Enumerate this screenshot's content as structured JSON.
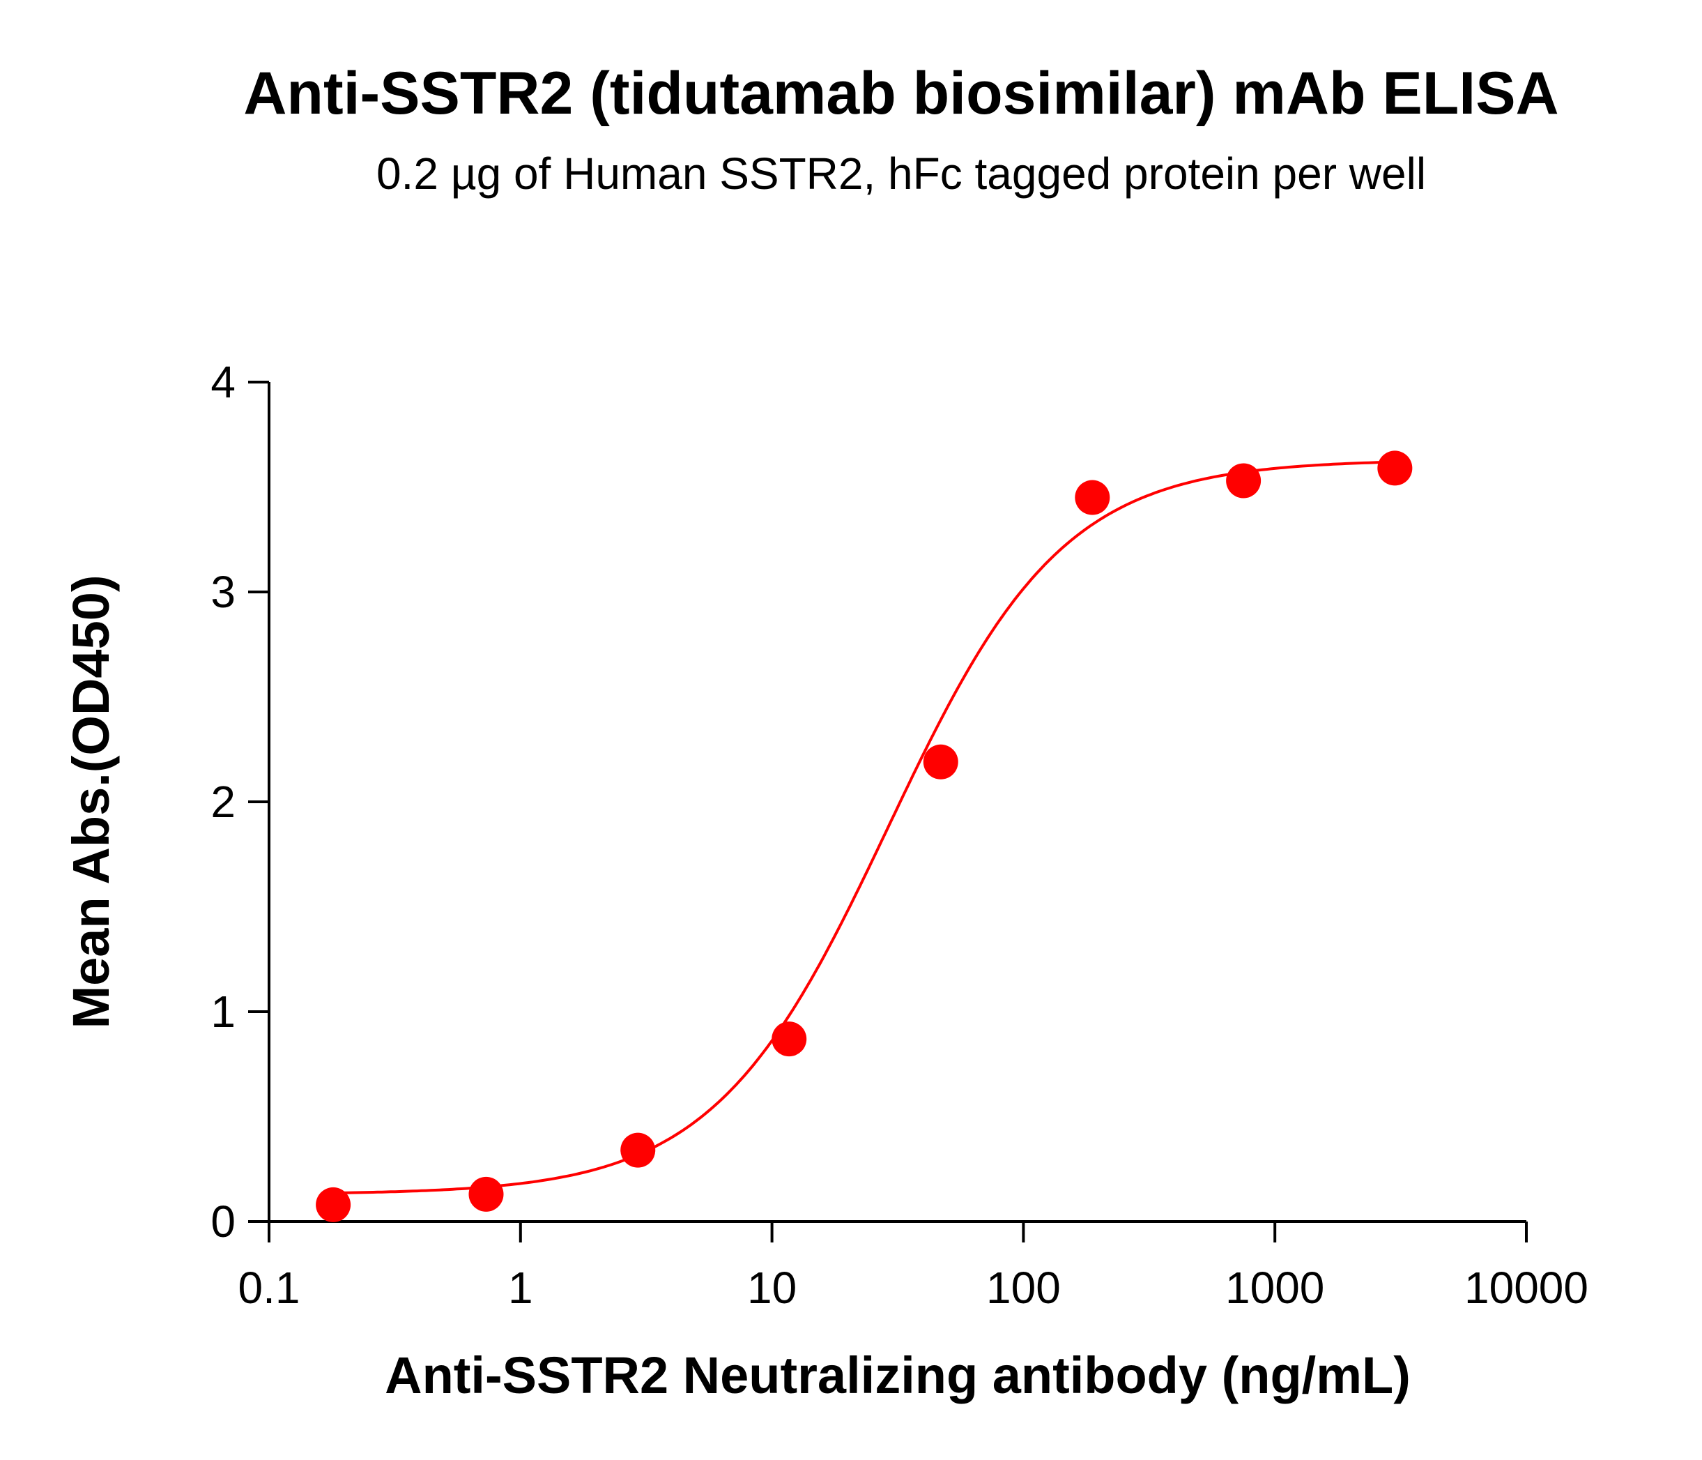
{
  "chart_data": {
    "type": "scatter",
    "title": "Anti-SSTR2 (tidutamab biosimilar) mAb ELISA",
    "subtitle": "0.2 µg of Human SSTR2, hFc tagged protein per well",
    "xlabel": "Anti-SSTR2 Neutralizing antibody (ng/mL)",
    "ylabel": "Mean Abs.(OD450)",
    "xscale": "log",
    "xlim": [
      0.1,
      10000
    ],
    "ylim": [
      0,
      4
    ],
    "xticks": [
      0.1,
      1,
      10,
      100,
      1000,
      10000
    ],
    "xtick_labels": [
      "0.1",
      "1",
      "10",
      "100",
      "1000",
      "10000"
    ],
    "yticks": [
      0,
      1,
      2,
      3,
      4
    ],
    "ytick_labels": [
      "0",
      "1",
      "2",
      "3",
      "4"
    ],
    "grid": false,
    "color": "#ff0000",
    "points": [
      {
        "x": 0.18,
        "y": 0.08
      },
      {
        "x": 0.73,
        "y": 0.13
      },
      {
        "x": 2.93,
        "y": 0.34
      },
      {
        "x": 11.7,
        "y": 0.87
      },
      {
        "x": 46.9,
        "y": 2.19
      },
      {
        "x": 188,
        "y": 3.45
      },
      {
        "x": 750,
        "y": 3.53
      },
      {
        "x": 3000,
        "y": 3.59
      }
    ],
    "fit": {
      "model": "4PL",
      "bottom": 0.13,
      "top": 3.63,
      "ec50": 29,
      "hill": 1.25,
      "x_range": [
        0.18,
        3000
      ]
    }
  }
}
